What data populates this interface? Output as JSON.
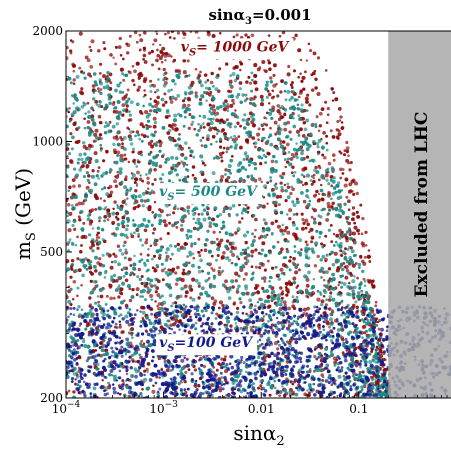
{
  "chart_data": {
    "type": "scatter",
    "title": "sinα",
    "title_subscript": "3",
    "title_suffix": "=0.001",
    "xlabel": "sinα",
    "xlabel_subscript": "2",
    "ylabel": "m",
    "ylabel_subscript": "S",
    "ylabel_suffix": " (GeV)",
    "x_scale": "log",
    "y_scale": "log",
    "xlim": [
      0.0001,
      0.9
    ],
    "ylim": [
      200,
      2000
    ],
    "x_ticks": [
      {
        "value": 0.0001,
        "base": "10",
        "exp": "−4"
      },
      {
        "value": 0.001,
        "base": "10",
        "exp": "−3"
      },
      {
        "value": 0.01,
        "label": "0.01"
      },
      {
        "value": 0.1,
        "label": "0.1"
      }
    ],
    "y_ticks": [
      {
        "value": 200,
        "label": "200"
      },
      {
        "value": 500,
        "label": "500"
      },
      {
        "value": 1000,
        "label": "1000"
      },
      {
        "value": 2000,
        "label": "2000"
      }
    ],
    "series": [
      {
        "name": "v_S= 1000 GeV",
        "color": "#8b0a0a",
        "m_max": 2000,
        "fall_start": 0.02,
        "fall_end": 0.22
      },
      {
        "name": "v_S= 500 GeV",
        "color": "#1a8a86",
        "m_max": 1540,
        "fall_start": 0.01,
        "fall_end": 0.22
      },
      {
        "name": "v_S=100 GeV",
        "color": "#131a8c",
        "m_max": 355,
        "fall_start": 10,
        "fall_end": 10
      }
    ],
    "series_labels": [
      {
        "prefix": "v",
        "sub": "S",
        "text": "= 1000 GeV",
        "color": "#8b0a0a",
        "x": 0.0015,
        "y": 1760
      },
      {
        "prefix": "v",
        "sub": "S",
        "text": "= 500 GeV",
        "color": "#1a8a86",
        "x": 0.0009,
        "y": 710
      },
      {
        "prefix": "v",
        "sub": "S",
        "text": "=100 GeV",
        "color": "#131a8c",
        "x": 0.0009,
        "y": 275
      }
    ],
    "excluded_region": {
      "x_from": 0.2,
      "x_to": 0.9,
      "label": "Excluded from LHC",
      "color": "#a8a8a8"
    }
  }
}
